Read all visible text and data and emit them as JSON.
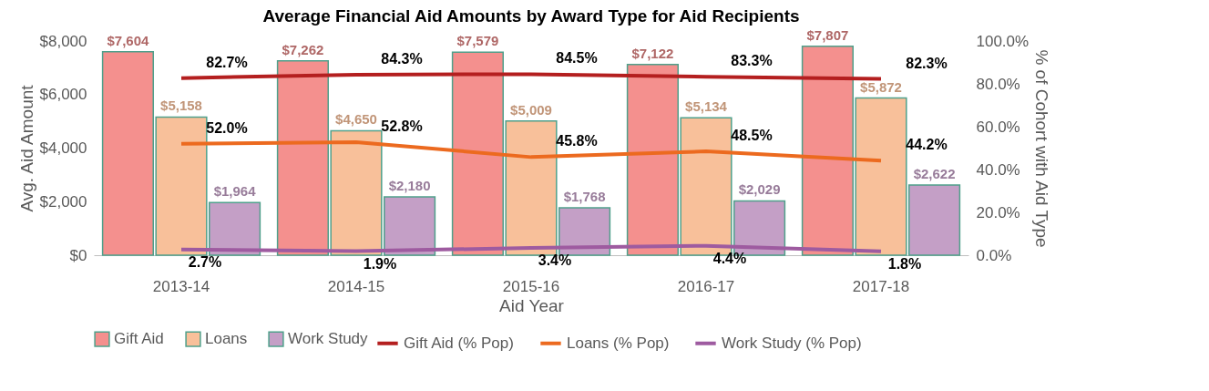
{
  "chart_data": {
    "type": "bar",
    "title": "Average  Financial Aid Amounts by Award Type for Aid Recipients",
    "xlabel": "Aid Year",
    "ylabel": "Avg. Aid Amount",
    "y2label": "% of Cohort with Aid Type",
    "categories": [
      "2013-14",
      "2014-15",
      "2015-16",
      "2016-17",
      "2017-18"
    ],
    "series": [
      {
        "name": "Gift Aid",
        "color": "#f4908e",
        "values": [
          7604,
          7262,
          7579,
          7122,
          7807
        ],
        "value_labels": [
          "$7,604",
          "$7,262",
          "$7,579",
          "$7,122",
          "$7,807"
        ]
      },
      {
        "name": "Loans",
        "color": "#f8c09a",
        "values": [
          5158,
          4650,
          5009,
          5134,
          5872
        ],
        "value_labels": [
          "$5,158",
          "$4,650",
          "$5,009",
          "$5,134",
          "$5,872"
        ]
      },
      {
        "name": "Work Study",
        "color": "#c49fc6",
        "values": [
          1964,
          2180,
          1768,
          2029,
          2622
        ],
        "value_labels": [
          "$1,964",
          "$2,180",
          "$1,768",
          "$2,029",
          "$2,622"
        ]
      },
      {
        "name": "Gift Aid (% Pop)",
        "type": "line",
        "axis": "y2",
        "color": "#b41f1f",
        "values": [
          82.7,
          84.3,
          84.5,
          83.3,
          82.3
        ],
        "value_labels": [
          "82.7%",
          "84.3%",
          "84.5%",
          "83.3%",
          "82.3%"
        ]
      },
      {
        "name": "Loans (% Pop)",
        "type": "line",
        "axis": "y2",
        "color": "#ec6a1f",
        "values": [
          52.0,
          52.8,
          45.8,
          48.5,
          44.2
        ],
        "value_labels": [
          "52.0%",
          "52.8%",
          "45.8%",
          "48.5%",
          "44.2%"
        ]
      },
      {
        "name": "Work Study (% Pop)",
        "type": "line",
        "axis": "y2",
        "color": "#9e5ba0",
        "values": [
          2.7,
          1.9,
          3.4,
          4.4,
          1.8
        ],
        "value_labels": [
          "2.7%",
          "1.9%",
          "3.4%",
          "4.4%",
          "1.8%"
        ]
      }
    ],
    "ylim": [
      0,
      8000
    ],
    "yticks": [
      {
        "value": 0,
        "label": "$0"
      },
      {
        "value": 2000,
        "label": "$2,000"
      },
      {
        "value": 4000,
        "label": "$4,000"
      },
      {
        "value": 6000,
        "label": "$6,000"
      },
      {
        "value": 8000,
        "label": "$8,000"
      }
    ],
    "y2lim": [
      0,
      100
    ],
    "y2ticks": [
      {
        "value": 0,
        "label": "0.0%"
      },
      {
        "value": 20,
        "label": "20.0%"
      },
      {
        "value": 40,
        "label": "40.0%"
      },
      {
        "value": 60,
        "label": "60.0%"
      },
      {
        "value": 80,
        "label": "80.0%"
      },
      {
        "value": 100,
        "label": "100.0%"
      }
    ],
    "grid": false,
    "legend": "bottom",
    "marker": "none",
    "line_style": "solid"
  }
}
